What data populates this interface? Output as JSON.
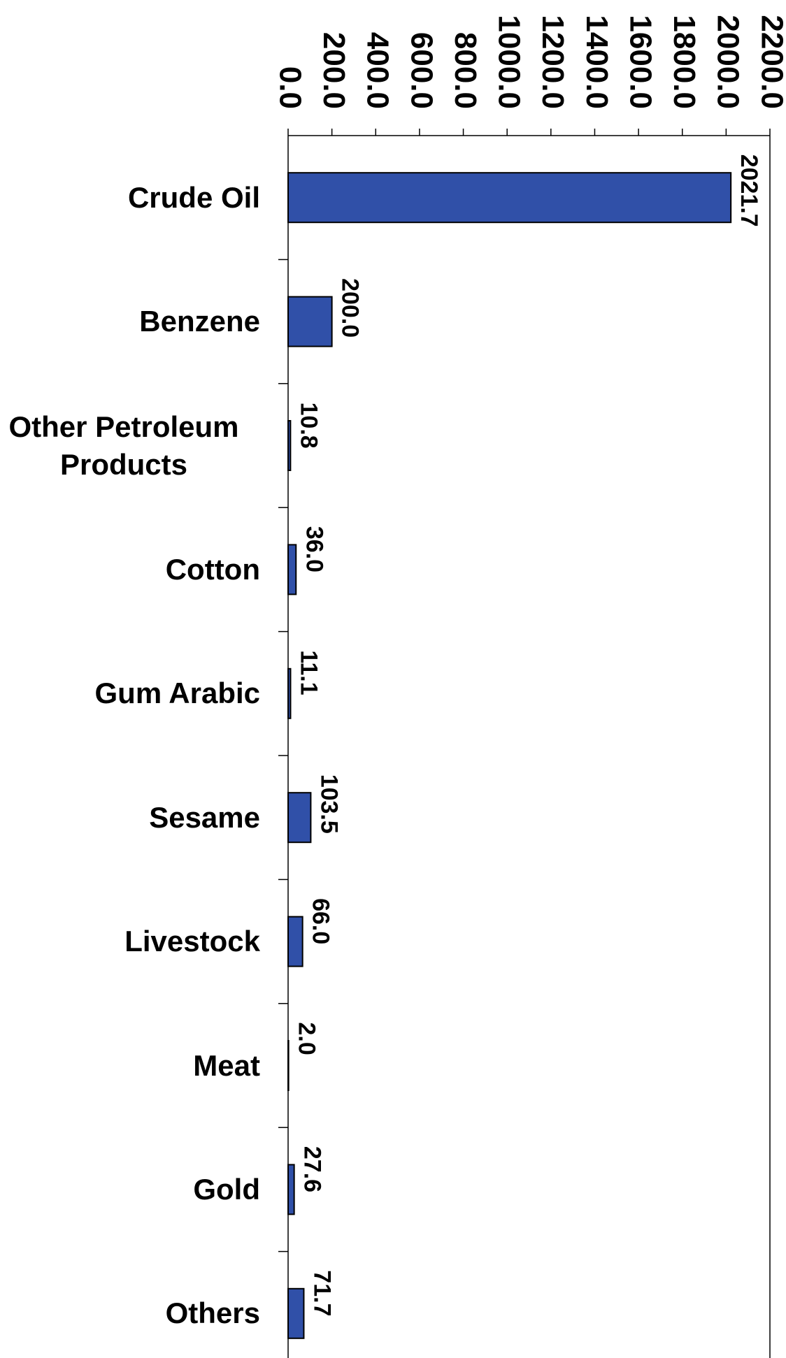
{
  "chart_data": {
    "type": "bar",
    "orientation": "horizontal",
    "categories": [
      "Crude Oil",
      "Benzene",
      "Other Petroleum Products",
      "Cotton",
      "Gum Arabic",
      "Sesame",
      "Livestock",
      "Meat",
      "Gold",
      "Others"
    ],
    "values": [
      2021.7,
      200.0,
      10.8,
      36.0,
      11.1,
      103.5,
      66.0,
      2.0,
      27.6,
      71.7
    ],
    "value_labels": [
      "2021.7",
      "200.0",
      "10.8",
      "36.0",
      "11.1",
      "103.5",
      "66.0",
      "2.0",
      "27.6",
      "71.7"
    ],
    "color": "#3050a8",
    "xlim": [
      0,
      2200
    ],
    "xticks": [
      {
        "value": 0,
        "label": "0.0"
      },
      {
        "value": 200,
        "label": "200.0"
      },
      {
        "value": 400,
        "label": "400.0"
      },
      {
        "value": 600,
        "label": "600.0"
      },
      {
        "value": 800,
        "label": "800.0"
      },
      {
        "value": 1000,
        "label": "1000.0"
      },
      {
        "value": 1200,
        "label": "1200.0"
      },
      {
        "value": 1400,
        "label": "1400.0"
      },
      {
        "value": 1600,
        "label": "1600.0"
      },
      {
        "value": 1800,
        "label": "1800.0"
      },
      {
        "value": 2000,
        "label": "2000.0"
      },
      {
        "value": 2200,
        "label": "2200.0"
      }
    ],
    "grid": false
  }
}
